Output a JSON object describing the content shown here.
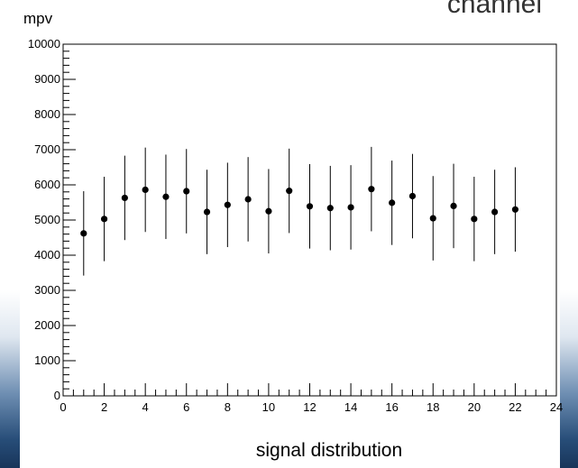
{
  "slide": {
    "header_right": "channel",
    "caption": "signal distribution"
  },
  "chart_data": {
    "type": "scatter",
    "ylabel": "mpv",
    "xlabel": "",
    "xlim": [
      0,
      24
    ],
    "ylim": [
      0,
      10000
    ],
    "x_ticks": [
      0,
      2,
      4,
      6,
      8,
      10,
      12,
      14,
      16,
      18,
      20,
      22,
      24
    ],
    "y_ticks": [
      0,
      1000,
      2000,
      3000,
      4000,
      5000,
      6000,
      7000,
      8000,
      9000,
      10000
    ],
    "grid": false,
    "series": [
      {
        "marker": "circle",
        "color": "#000000",
        "x": [
          1,
          2,
          3,
          4,
          5,
          6,
          7,
          8,
          9,
          10,
          11,
          12,
          13,
          14,
          15,
          16,
          17,
          18,
          19,
          20,
          21,
          22
        ],
        "y": [
          4620,
          5030,
          5630,
          5860,
          5660,
          5820,
          5230,
          5430,
          5590,
          5250,
          5830,
          5390,
          5340,
          5360,
          5880,
          5490,
          5680,
          5050,
          5400,
          5030,
          5230,
          5300
        ],
        "y_err": [
          1200,
          1200,
          1200,
          1200,
          1200,
          1200,
          1200,
          1200,
          1200,
          1200,
          1200,
          1200,
          1200,
          1200,
          1200,
          1200,
          1200,
          1200,
          1200,
          1200,
          1200,
          1200
        ]
      }
    ]
  }
}
